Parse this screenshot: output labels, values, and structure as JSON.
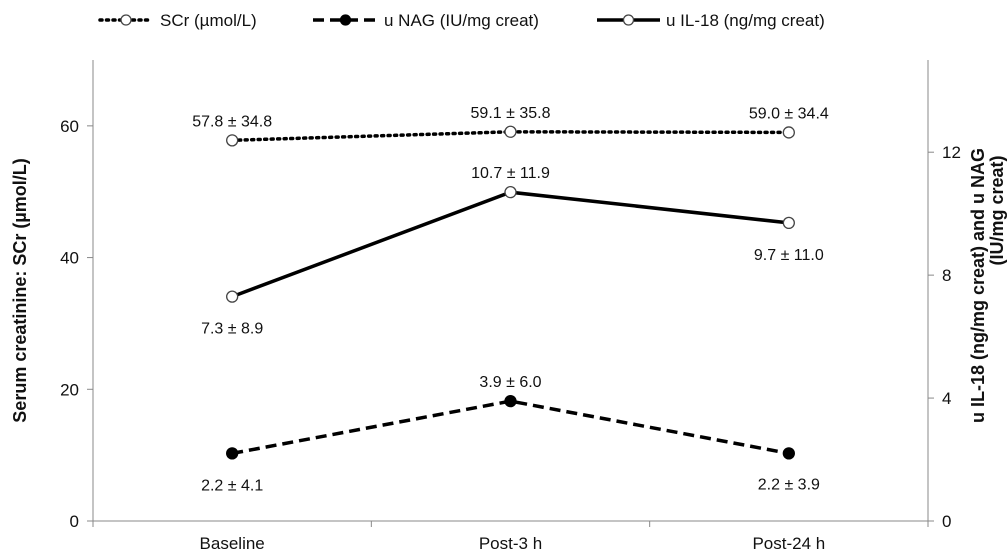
{
  "chart_data": {
    "type": "line",
    "categories": [
      "Baseline",
      "Post-3 h",
      "Post-24 h"
    ],
    "left_axis": {
      "title": "Serum creatinine: SCr (µmol/L)",
      "ylim": [
        0,
        70
      ],
      "ticks": [
        0,
        20,
        40,
        60
      ]
    },
    "right_axis": {
      "title_line1": "u IL-18 (ng/mg creat) and u NAG",
      "title_line2": "(IU/mg creat)",
      "ylim": [
        0,
        15
      ],
      "ticks": [
        0,
        4,
        8,
        12
      ]
    },
    "series": [
      {
        "name": "SCr (µmol/L)",
        "axis": "left",
        "style": "dotted",
        "marker": "open",
        "values": [
          57.8,
          59.1,
          59.0
        ],
        "labels": [
          "57.8 ± 34.8",
          "59.1 ± 35.8",
          "59.0 ± 34.4"
        ]
      },
      {
        "name": "u NAG (IU/mg creat)",
        "axis": "right",
        "style": "dashed",
        "marker": "filled",
        "values": [
          2.2,
          3.9,
          2.2
        ],
        "labels": [
          "2.2 ± 4.1",
          "3.9 ± 6.0",
          "2.2 ± 3.9"
        ]
      },
      {
        "name": "u IL-18 (ng/mg creat)",
        "axis": "right",
        "style": "solid",
        "marker": "open",
        "values": [
          7.3,
          10.7,
          9.7
        ],
        "labels": [
          "7.3 ± 8.9",
          "10.7 ± 11.9",
          "9.7 ± 11.0"
        ]
      }
    ],
    "legend_position": "top",
    "grid": false,
    "colors": {
      "line": "#000000",
      "axis": "#888888",
      "marker_fill_open": "#ffffff"
    }
  }
}
